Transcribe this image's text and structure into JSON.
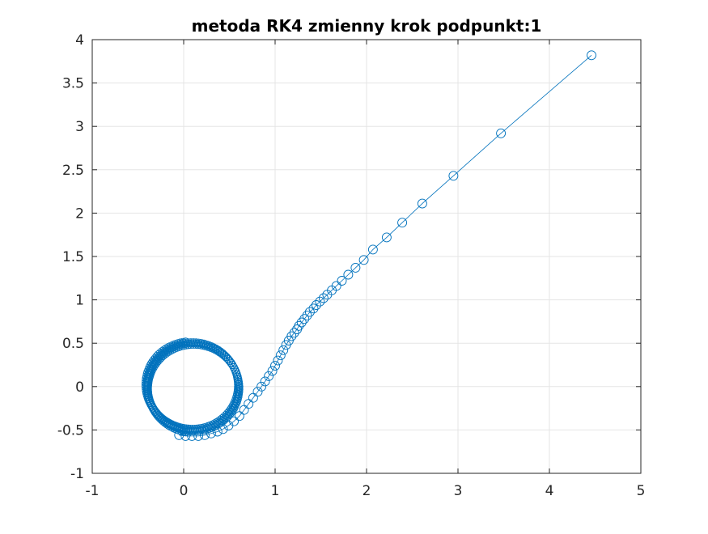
{
  "chart_data": {
    "type": "line",
    "title": "metoda RK4 zmienny krok podpunkt:1",
    "xlabel": "",
    "ylabel": "",
    "xlim": [
      -1,
      5
    ],
    "ylim": [
      -1,
      4
    ],
    "x_ticks": [
      "-1",
      "0",
      "1",
      "2",
      "3",
      "4",
      "5"
    ],
    "y_ticks": [
      "-1",
      "-0.5",
      "0",
      "0.5",
      "1",
      "1.5",
      "2",
      "2.5",
      "3",
      "3.5",
      "4"
    ],
    "grid": true,
    "marker": "circle",
    "series_color": "#0072BD",
    "series": [
      {
        "x": [
          4.46,
          3.47,
          2.95,
          2.61,
          2.39,
          2.22,
          2.07,
          1.97,
          1.88,
          1.8,
          1.73,
          1.67,
          1.62,
          1.57,
          1.53,
          1.49,
          1.45,
          1.42,
          1.38,
          1.35,
          1.32,
          1.29,
          1.26,
          1.24,
          1.21,
          1.18,
          1.15,
          1.12,
          1.09,
          1.06,
          1.03,
          1.0,
          0.97,
          0.93,
          0.89,
          0.85,
          0.81,
          0.76,
          0.71,
          0.66,
          0.61,
          0.55,
          0.49,
          0.43,
          0.37,
          0.3,
          0.23,
          0.16,
          0.09,
          0.02,
          -0.05
        ],
        "y": [
          3.82,
          2.92,
          2.43,
          2.11,
          1.89,
          1.72,
          1.58,
          1.46,
          1.37,
          1.29,
          1.22,
          1.16,
          1.11,
          1.06,
          1.02,
          0.98,
          0.94,
          0.9,
          0.86,
          0.82,
          0.78,
          0.74,
          0.7,
          0.66,
          0.62,
          0.58,
          0.53,
          0.48,
          0.42,
          0.36,
          0.3,
          0.24,
          0.18,
          0.12,
          0.06,
          0.0,
          -0.06,
          -0.13,
          -0.2,
          -0.27,
          -0.34,
          -0.4,
          -0.45,
          -0.49,
          -0.52,
          -0.54,
          -0.56,
          -0.57,
          -0.57,
          -0.57,
          -0.56
        ]
      }
    ],
    "spiral_loop": {
      "center_x": 0.05,
      "center_y": -0.03,
      "radius_min": 0.44,
      "radius_max": 0.56,
      "points": 420
    }
  }
}
